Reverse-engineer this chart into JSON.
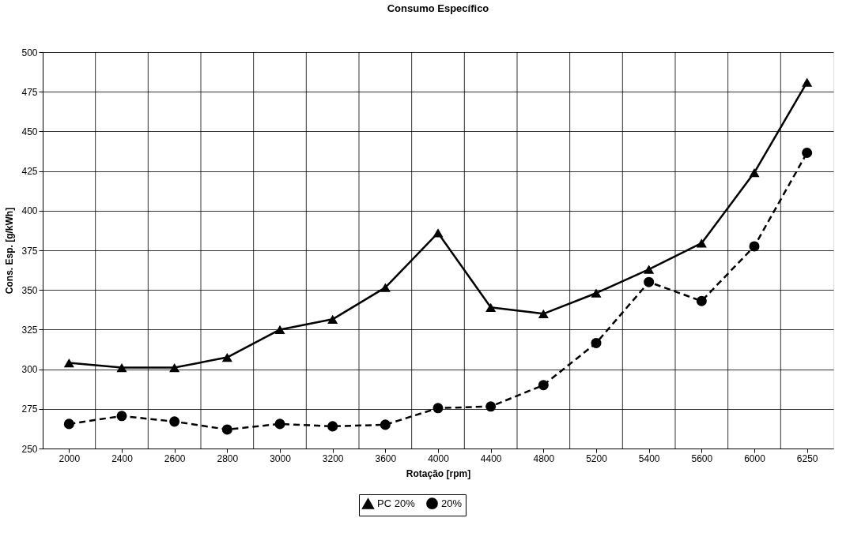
{
  "chart_data": {
    "type": "line",
    "title": "Consumo Específico",
    "xlabel": "Rotação [rpm]",
    "ylabel": "Cons. Esp. [g/kWh]",
    "categories": [
      "2000",
      "2400",
      "2600",
      "2800",
      "3000",
      "3200",
      "3600",
      "4000",
      "4400",
      "4800",
      "5200",
      "5400",
      "5600",
      "6000",
      "6250"
    ],
    "ylim": [
      250,
      500
    ],
    "yticks": [
      250,
      275,
      300,
      325,
      350,
      375,
      400,
      425,
      450,
      475,
      500
    ],
    "grid": true,
    "legend": "bottom",
    "series": [
      {
        "name": "PC 20%",
        "color": "#000000",
        "marker": "triangle",
        "line_style": "solid",
        "values": [
          304,
          301,
          301,
          307.5,
          325,
          331.5,
          351.5,
          386,
          339,
          335,
          348,
          363,
          379.5,
          424,
          481
        ]
      },
      {
        "name": "20%",
        "color": "#000000",
        "marker": "circle",
        "line_style": "dashed",
        "values": [
          265.5,
          270.5,
          267,
          262,
          265.5,
          264,
          265,
          275.5,
          276.5,
          290,
          316.5,
          355,
          343,
          377.5,
          436.5
        ]
      }
    ]
  }
}
